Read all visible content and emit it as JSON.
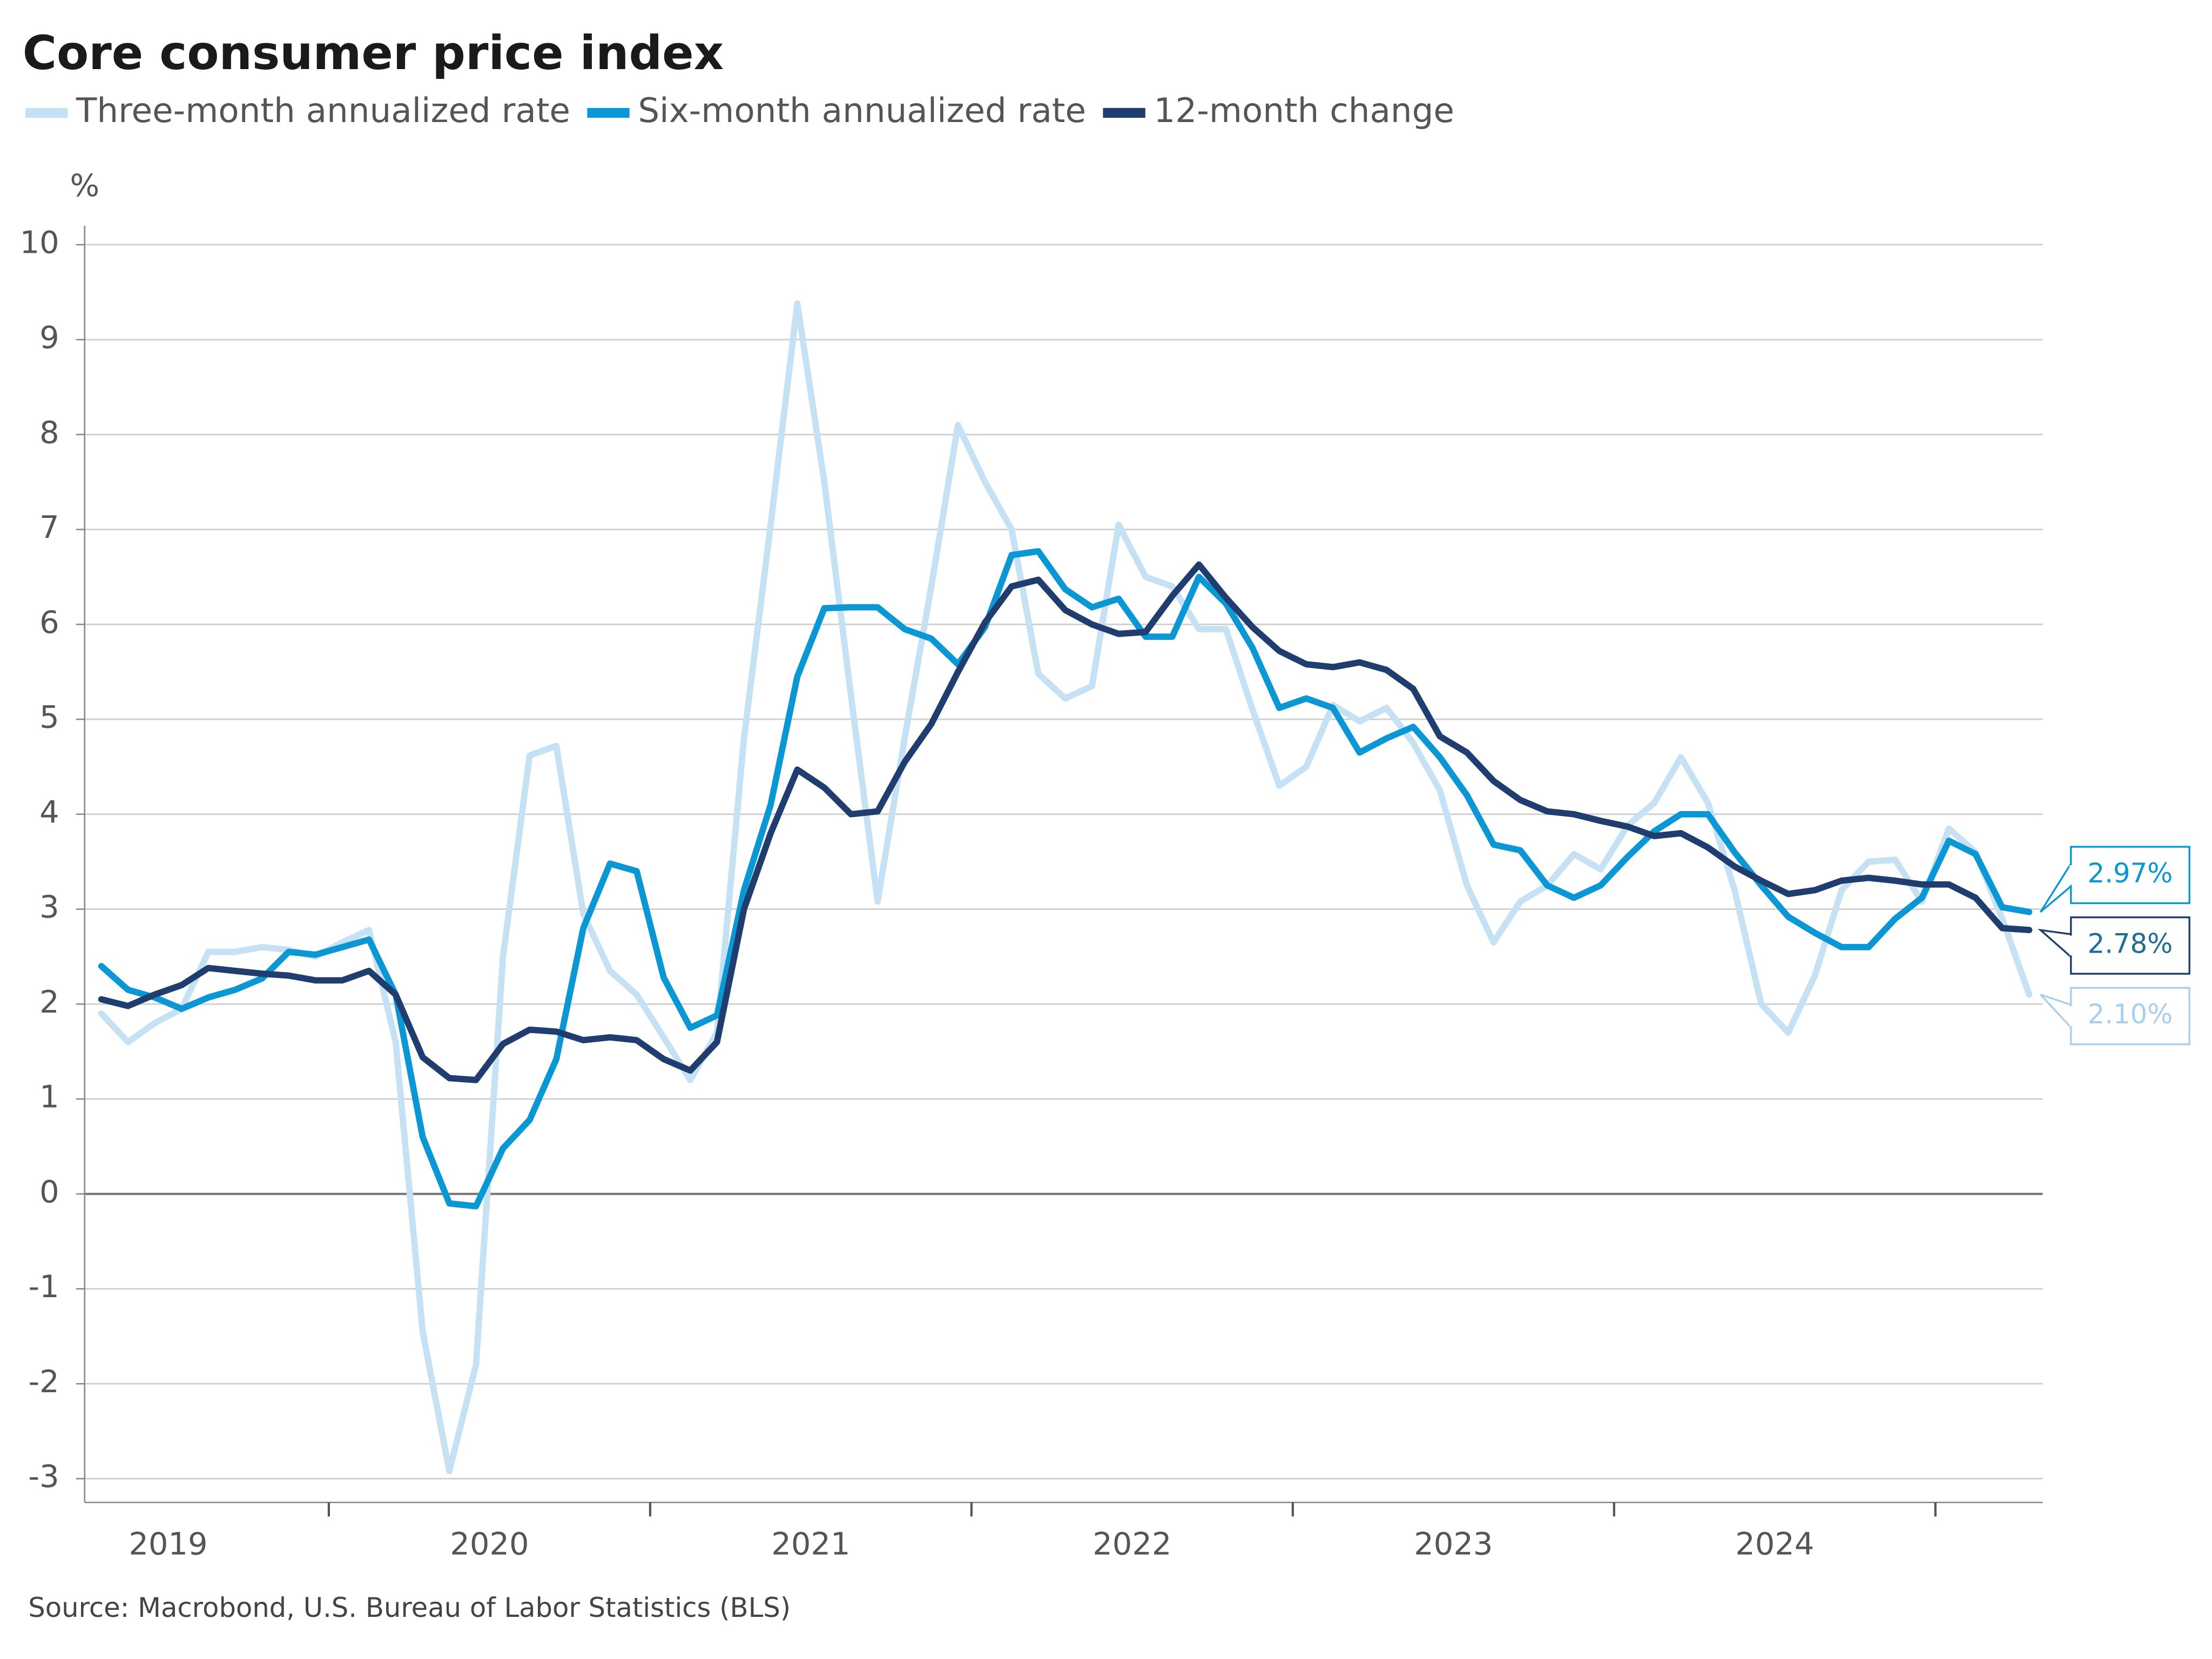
{
  "chart_data": {
    "type": "line",
    "title": "Core consumer price index",
    "y_axis_label": "%",
    "source": "Source: Macrobond, U.S. Bureau of Labor Statistics (BLS)",
    "x": [
      2019.292,
      2019.375,
      2019.458,
      2019.542,
      2019.625,
      2019.708,
      2019.792,
      2019.875,
      2019.958,
      2020.042,
      2020.125,
      2020.208,
      2020.292,
      2020.375,
      2020.458,
      2020.542,
      2020.625,
      2020.708,
      2020.792,
      2020.875,
      2020.958,
      2021.042,
      2021.125,
      2021.208,
      2021.292,
      2021.375,
      2021.458,
      2021.542,
      2021.625,
      2021.708,
      2021.792,
      2021.875,
      2021.958,
      2022.042,
      2022.125,
      2022.208,
      2022.292,
      2022.375,
      2022.458,
      2022.542,
      2022.625,
      2022.708,
      2022.792,
      2022.875,
      2022.958,
      2023.042,
      2023.125,
      2023.208,
      2023.292,
      2023.375,
      2023.458,
      2023.542,
      2023.625,
      2023.708,
      2023.792,
      2023.875,
      2023.958,
      2024.042,
      2024.125,
      2024.208,
      2024.292,
      2024.375,
      2024.458,
      2024.542,
      2024.625,
      2024.708,
      2024.792,
      2024.875,
      2024.958,
      2025.042,
      2025.125,
      2025.208,
      2025.292
    ],
    "xlim": [
      2019.24,
      2025.334
    ],
    "xticks": [
      2020,
      2021,
      2022,
      2023,
      2024,
      2025
    ],
    "year_labels": [
      {
        "value": 2019.5,
        "label": "2019"
      },
      {
        "value": 2020.5,
        "label": "2020"
      },
      {
        "value": 2021.5,
        "label": "2021"
      },
      {
        "value": 2022.5,
        "label": "2022"
      },
      {
        "value": 2023.5,
        "label": "2023"
      },
      {
        "value": 2024.5,
        "label": "2024"
      }
    ],
    "ylim": [
      -3.25,
      10.2
    ],
    "yticks": [
      -3,
      -2,
      -1,
      0,
      1,
      2,
      3,
      4,
      5,
      6,
      7,
      8,
      9,
      10
    ],
    "grid": true,
    "series": [
      {
        "name": "Three-month annualized rate",
        "color": "#c6e1f4",
        "values": [
          1.9,
          1.6,
          1.8,
          1.95,
          2.55,
          2.55,
          2.6,
          2.57,
          2.5,
          2.65,
          2.78,
          1.6,
          -1.45,
          -2.92,
          -1.8,
          2.5,
          4.62,
          4.72,
          2.95,
          2.35,
          2.1,
          1.65,
          1.2,
          1.7,
          4.8,
          7.05,
          9.38,
          7.5,
          5.25,
          3.08,
          4.8,
          6.4,
          8.1,
          7.5,
          7.0,
          5.48,
          5.22,
          5.35,
          7.05,
          6.5,
          6.4,
          5.95,
          5.95,
          5.1,
          4.3,
          4.5,
          5.15,
          4.98,
          5.12,
          4.75,
          4.25,
          3.25,
          2.65,
          3.08,
          3.25,
          3.58,
          3.42,
          3.88,
          4.12,
          4.6,
          4.12,
          3.2,
          2.0,
          1.7,
          2.3,
          3.2,
          3.5,
          3.52,
          3.08,
          3.85,
          3.6,
          2.9,
          2.1
        ],
        "value_labels": [
          null,
          null,
          null,
          null,
          null,
          null,
          null,
          null,
          null,
          null,
          null,
          null,
          null,
          null,
          null,
          null,
          null,
          null,
          null,
          null,
          null,
          null,
          null,
          null,
          null,
          null,
          null,
          null,
          null,
          null,
          null,
          null,
          null,
          null,
          null,
          null,
          null,
          null,
          null,
          null,
          null,
          null,
          null,
          null,
          null,
          null,
          null,
          null,
          null,
          null,
          null,
          null,
          null,
          null,
          null,
          null,
          null,
          null,
          null,
          null,
          null,
          null,
          null,
          null,
          null,
          null,
          null,
          null,
          null,
          null,
          null,
          null,
          "2.10%"
        ]
      },
      {
        "name": "Six-month annualized rate",
        "color": "#0b96d4",
        "values": [
          2.4,
          2.15,
          2.07,
          1.95,
          2.07,
          2.15,
          2.27,
          2.55,
          2.52,
          2.6,
          2.68,
          2.1,
          0.6,
          -0.1,
          -0.13,
          0.48,
          0.78,
          1.42,
          2.8,
          3.48,
          3.4,
          2.28,
          1.75,
          1.88,
          3.2,
          4.1,
          5.45,
          6.17,
          6.18,
          6.18,
          5.95,
          5.85,
          5.58,
          5.97,
          6.73,
          6.77,
          6.37,
          6.18,
          6.27,
          5.87,
          5.87,
          6.5,
          6.22,
          5.75,
          5.12,
          5.22,
          5.12,
          4.65,
          4.8,
          4.92,
          4.6,
          4.2,
          3.68,
          3.62,
          3.25,
          3.12,
          3.25,
          3.55,
          3.82,
          4.0,
          4.0,
          3.6,
          3.25,
          2.92,
          2.75,
          2.6,
          2.6,
          2.9,
          3.12,
          3.72,
          3.58,
          3.02,
          2.97
        ],
        "value_labels": [
          null,
          null,
          null,
          null,
          null,
          null,
          null,
          null,
          null,
          null,
          null,
          null,
          null,
          null,
          null,
          null,
          null,
          null,
          null,
          null,
          null,
          null,
          null,
          null,
          null,
          null,
          null,
          null,
          null,
          null,
          null,
          null,
          null,
          null,
          null,
          null,
          null,
          null,
          null,
          null,
          null,
          null,
          null,
          null,
          null,
          null,
          null,
          null,
          null,
          null,
          null,
          null,
          null,
          null,
          null,
          null,
          null,
          null,
          null,
          null,
          null,
          null,
          null,
          null,
          null,
          null,
          null,
          null,
          null,
          null,
          null,
          null,
          "2.97%"
        ]
      },
      {
        "name": "12-month change",
        "color": "#1f3d6e",
        "values": [
          2.05,
          1.98,
          2.1,
          2.2,
          2.38,
          2.35,
          2.32,
          2.3,
          2.25,
          2.25,
          2.35,
          2.1,
          1.44,
          1.22,
          1.2,
          1.58,
          1.73,
          1.71,
          1.62,
          1.65,
          1.62,
          1.42,
          1.3,
          1.6,
          3.0,
          3.8,
          4.47,
          4.28,
          4.0,
          4.03,
          4.55,
          4.95,
          5.5,
          6.02,
          6.4,
          6.47,
          6.15,
          6.0,
          5.9,
          5.92,
          6.3,
          6.63,
          6.28,
          5.97,
          5.72,
          5.58,
          5.55,
          5.6,
          5.52,
          5.32,
          4.82,
          4.65,
          4.35,
          4.15,
          4.03,
          4.0,
          3.93,
          3.87,
          3.77,
          3.8,
          3.65,
          3.45,
          3.3,
          3.16,
          3.2,
          3.3,
          3.33,
          3.3,
          3.26,
          3.26,
          3.12,
          2.8,
          2.78
        ],
        "value_labels": [
          null,
          null,
          null,
          null,
          null,
          null,
          null,
          null,
          null,
          null,
          null,
          null,
          null,
          null,
          null,
          null,
          null,
          null,
          null,
          null,
          null,
          null,
          null,
          null,
          null,
          null,
          null,
          null,
          null,
          null,
          null,
          null,
          null,
          null,
          null,
          null,
          null,
          null,
          null,
          null,
          null,
          null,
          null,
          null,
          null,
          null,
          null,
          null,
          null,
          null,
          null,
          null,
          null,
          null,
          null,
          null,
          null,
          null,
          null,
          null,
          null,
          null,
          null,
          null,
          null,
          null,
          null,
          null,
          null,
          null,
          null,
          null,
          "2.78%"
        ]
      }
    ]
  }
}
